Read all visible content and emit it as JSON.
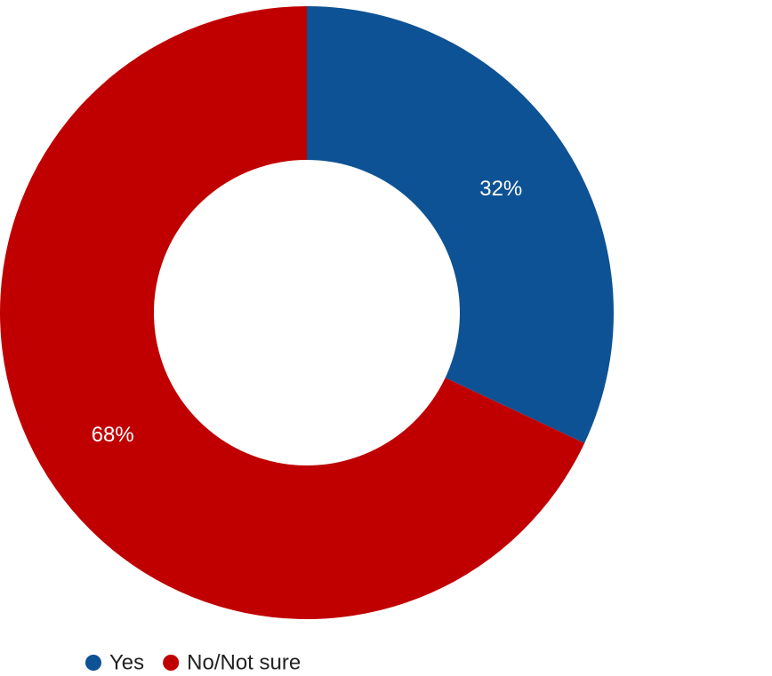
{
  "chart_data": {
    "type": "donut",
    "categories": [
      "Yes",
      "No/Not sure"
    ],
    "values": [
      32,
      68
    ],
    "value_labels": [
      "32%",
      "68%"
    ],
    "colors": [
      "#0d5294",
      "#c00000"
    ]
  }
}
